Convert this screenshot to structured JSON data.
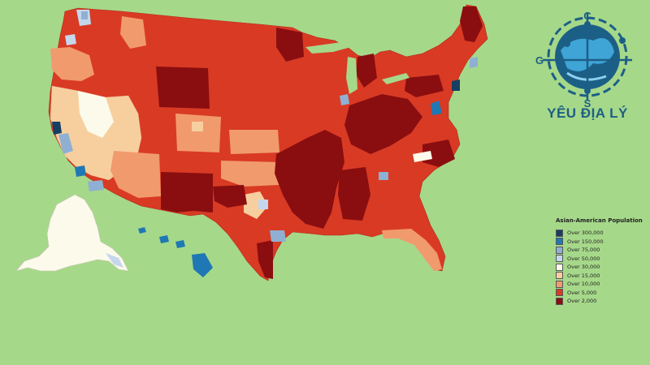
{
  "map": {
    "colors": {
      "background": "#a6d88a",
      "over_300000": "#163f62",
      "over_150000": "#1f78b4",
      "over_75000": "#8fb0d2",
      "over_50000": "#c4d7ec",
      "over_30000": "#fcfaeb",
      "over_15000": "#f7cf9f",
      "over_10000": "#f19a6e",
      "over_5000": "#d93a24",
      "over_2000": "#8a0e10"
    }
  },
  "legend": {
    "title": "Asian-American Population",
    "items": [
      {
        "label": "Over 300,000",
        "color": "#163f62"
      },
      {
        "label": "Over 150,000",
        "color": "#1f78b4"
      },
      {
        "label": "Over 75,000",
        "color": "#8fb0d2"
      },
      {
        "label": "Over 50,000",
        "color": "#c4d7ec"
      },
      {
        "label": "Over 30,000",
        "color": "#fcfaeb"
      },
      {
        "label": "Over 15,000",
        "color": "#f7cf9f"
      },
      {
        "label": "Over 10,000",
        "color": "#f19a6e"
      },
      {
        "label": "Over 5,000",
        "color": "#d93a24"
      },
      {
        "label": "Over 2,000",
        "color": "#8a0e10"
      }
    ]
  },
  "logo": {
    "text": "YÊU ĐỊA LÝ",
    "compass_letters": [
      "C",
      "S",
      "G"
    ],
    "color": "#1c5f86"
  }
}
